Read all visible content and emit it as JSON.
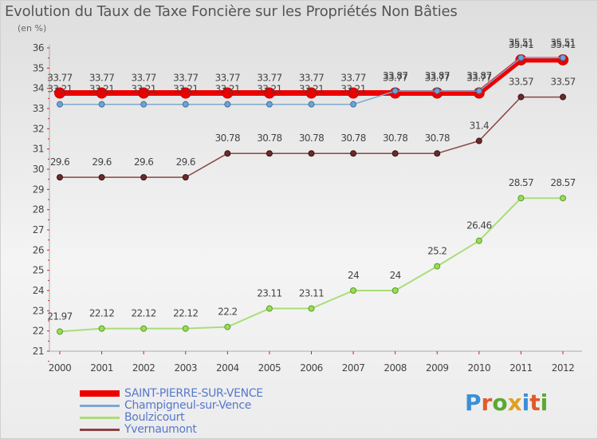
{
  "title": "Evolution du Taux de Taxe Foncière sur les Propriétés Non Bâties",
  "unit_label": "(en %)",
  "logo_text": "Proxiti",
  "logo_colors": [
    "#3a8fd8",
    "#e05a2a",
    "#5aa832",
    "#e0a020",
    "#3a8fd8",
    "#e05a2a",
    "#5aa832"
  ],
  "chart_data": {
    "type": "line",
    "x": [
      "2000",
      "2001",
      "2002",
      "2003",
      "2004",
      "2005",
      "2006",
      "2007",
      "2008",
      "2009",
      "2010",
      "2011",
      "2012"
    ],
    "ylim": [
      21,
      36
    ],
    "yticks": [
      "21",
      "22",
      "23",
      "24",
      "25",
      "26",
      "27",
      "28",
      "29",
      "30",
      "31",
      "32",
      "33",
      "34",
      "35",
      "36"
    ],
    "grid": false,
    "series": [
      {
        "name": "SAINT-PIERRE-SUR-VENCE",
        "color": "#ee0000",
        "values": [
          33.77,
          33.77,
          33.77,
          33.77,
          33.77,
          33.77,
          33.77,
          33.77,
          33.77,
          33.77,
          33.77,
          35.41,
          35.41
        ],
        "labels": [
          "33.77",
          "33.77",
          "33.77",
          "33.77",
          "33.77",
          "33.77",
          "33.77",
          "33.77",
          "33.77",
          "33.77",
          "33.77",
          "35.41",
          "35.41"
        ]
      },
      {
        "name": "Champigneul-sur-Vence",
        "color": "#7fa8d0",
        "values": [
          33.21,
          33.21,
          33.21,
          33.21,
          33.21,
          33.21,
          33.21,
          33.21,
          33.87,
          33.87,
          33.87,
          35.51,
          35.51
        ],
        "labels": [
          "33.21",
          "33.21",
          "33.21",
          "33.21",
          "33.21",
          "33.21",
          "33.21",
          "33.21",
          "33.87",
          "33.87",
          "33.87",
          "35.51",
          "35.51"
        ]
      },
      {
        "name": "Boulzicourt",
        "color": "#aadd77",
        "values": [
          21.97,
          22.12,
          22.12,
          22.12,
          22.2,
          23.11,
          23.11,
          24,
          24,
          25.2,
          26.46,
          28.57,
          28.57
        ],
        "labels": [
          "21.97",
          "22.12",
          "22.12",
          "22.12",
          "22.2",
          "23.11",
          "23.11",
          "24",
          "24",
          "25.2",
          "26.46",
          "28.57",
          "28.57"
        ]
      },
      {
        "name": "Yvernaumont",
        "color": "#8b4444",
        "values": [
          29.6,
          29.6,
          29.6,
          29.6,
          30.78,
          30.78,
          30.78,
          30.78,
          30.78,
          30.78,
          31.4,
          33.57,
          33.57
        ],
        "labels": [
          "29.6",
          "29.6",
          "29.6",
          "29.6",
          "30.78",
          "30.78",
          "30.78",
          "30.78",
          "30.78",
          "30.78",
          "31.4",
          "33.57",
          "33.57"
        ]
      }
    ]
  }
}
